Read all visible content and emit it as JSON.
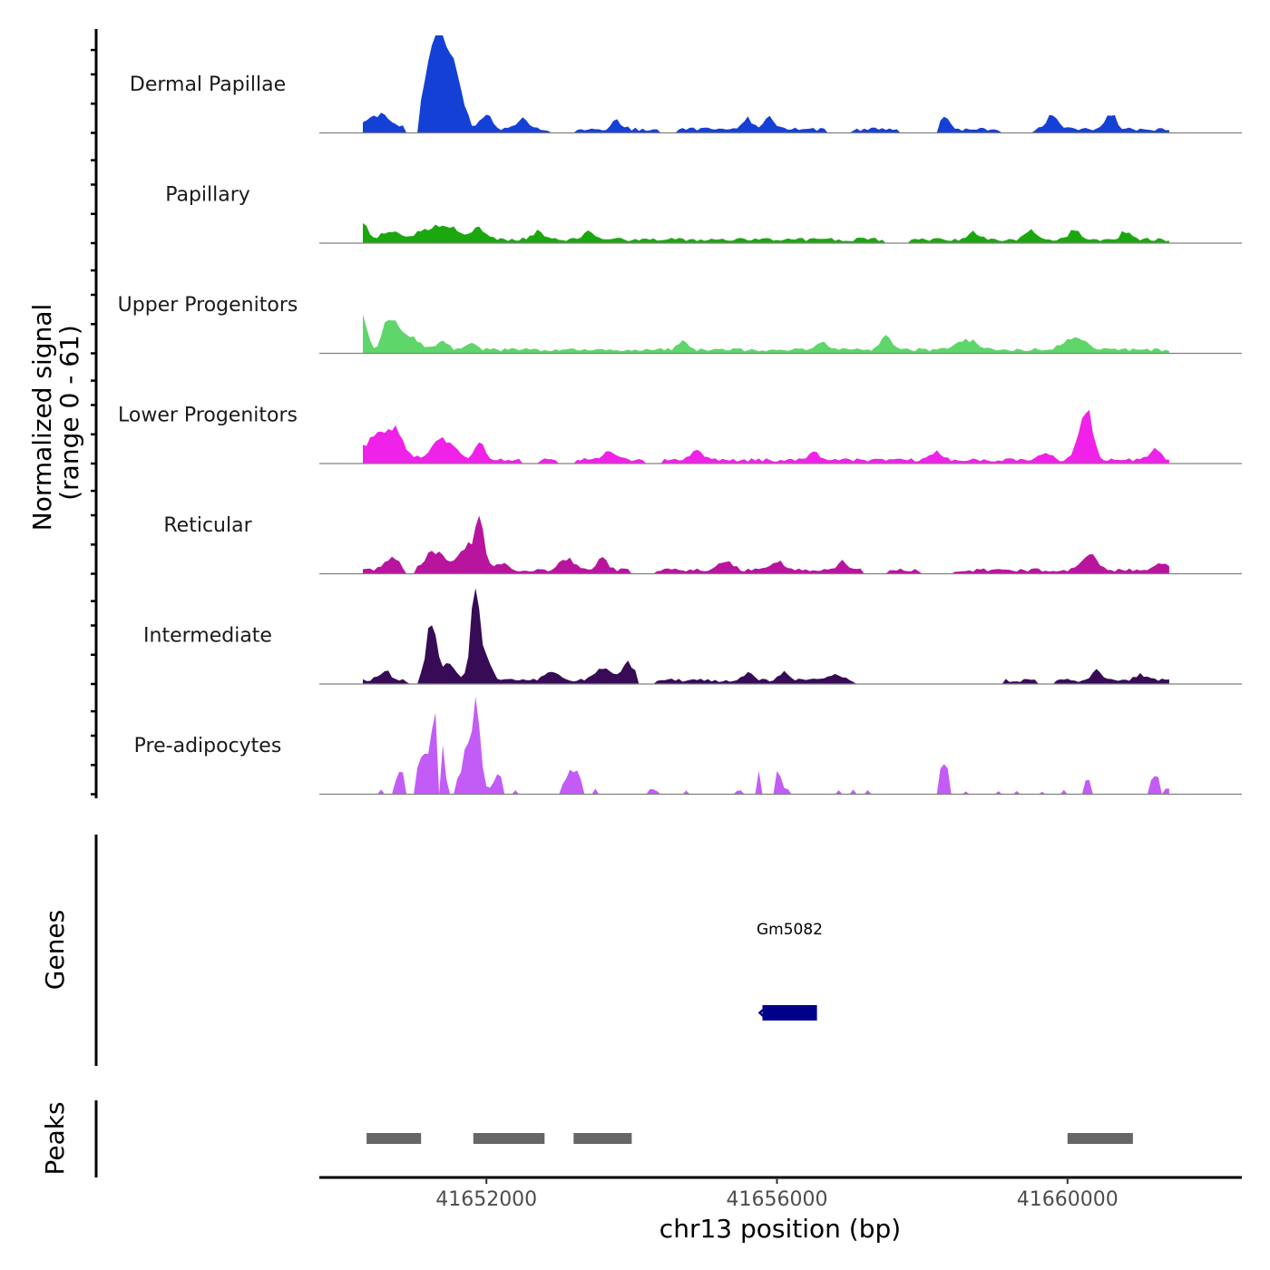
{
  "chart_data": {
    "type": "area",
    "chromosome": "chr13",
    "xlabel": "chr13 position (bp)",
    "ylabel_line1": "Normalized signal",
    "ylabel_line2": "(range 0 - 61)",
    "ylim": [
      0,
      61
    ],
    "xlim": [
      41649700,
      41662400
    ],
    "x_ticks": [
      {
        "value": 41652000,
        "label": "41652000"
      },
      {
        "value": 41656000,
        "label": "41656000"
      },
      {
        "value": 41660000,
        "label": "41660000"
      }
    ],
    "signal_start": 41650300,
    "signal_end": 41661400,
    "bin_size": 150,
    "tracks": [
      {
        "name": "Dermal Papillae",
        "color": "#1440d6",
        "peaks": [
          [
            41650500,
            10,
            300
          ],
          [
            41651400,
            55,
            300
          ],
          [
            41651250,
            22,
            400
          ],
          [
            41651650,
            15,
            150
          ],
          [
            41652000,
            10,
            150
          ],
          [
            41652500,
            8,
            150
          ],
          [
            41653800,
            6,
            150
          ],
          [
            41655600,
            7,
            150
          ],
          [
            41655900,
            9,
            150
          ],
          [
            41658300,
            8,
            150
          ],
          [
            41659800,
            12,
            150
          ],
          [
            41660600,
            10,
            150
          ]
        ],
        "gaps": [
          [
            41650900,
            41651050
          ],
          [
            41652900,
            41653200
          ],
          [
            41654400,
            41654600
          ],
          [
            41656700,
            41657000
          ],
          [
            41657700,
            41658200
          ],
          [
            41659100,
            41659500
          ]
        ]
      },
      {
        "name": "Papillary",
        "color": "#1aa80e",
        "peaks": [
          [
            41650300,
            9,
            150
          ],
          [
            41650700,
            5,
            300
          ],
          [
            41651200,
            7,
            300
          ],
          [
            41651500,
            8,
            300
          ],
          [
            41651900,
            8,
            200
          ],
          [
            41652700,
            6,
            150
          ],
          [
            41653400,
            5,
            150
          ],
          [
            41658700,
            6,
            150
          ],
          [
            41659500,
            6,
            150
          ],
          [
            41660100,
            7,
            150
          ],
          [
            41660800,
            6,
            150
          ]
        ],
        "gaps": [
          [
            41657500,
            41657800
          ]
        ]
      },
      {
        "name": "Upper Progenitors",
        "color": "#5ed66a",
        "peaks": [
          [
            41650300,
            20,
            120
          ],
          [
            41650680,
            22,
            200
          ],
          [
            41650950,
            10,
            250
          ],
          [
            41651400,
            7,
            150
          ],
          [
            41651800,
            6,
            150
          ],
          [
            41654700,
            6,
            150
          ],
          [
            41656600,
            5,
            150
          ],
          [
            41657500,
            9,
            150
          ],
          [
            41658600,
            7,
            300
          ],
          [
            41660100,
            9,
            300
          ]
        ],
        "gaps": []
      },
      {
        "name": "Lower Progenitors",
        "color": "#f021e8",
        "peaks": [
          [
            41650700,
            22,
            300
          ],
          [
            41650400,
            12,
            250
          ],
          [
            41651400,
            14,
            300
          ],
          [
            41651900,
            11,
            150
          ],
          [
            41653700,
            6,
            200
          ],
          [
            41654900,
            8,
            150
          ],
          [
            41656500,
            5,
            150
          ],
          [
            41658200,
            6,
            150
          ],
          [
            41659700,
            6,
            150
          ],
          [
            41660250,
            38,
            180
          ],
          [
            41661200,
            8,
            150
          ]
        ],
        "gaps": [
          [
            41652500,
            41652700
          ],
          [
            41653000,
            41653200
          ],
          [
            41654200,
            41654400
          ]
        ]
      },
      {
        "name": "Reticular",
        "color": "#b8149e",
        "peaks": [
          [
            41650700,
            9,
            200
          ],
          [
            41651300,
            12,
            300
          ],
          [
            41651900,
            30,
            150
          ],
          [
            41651700,
            14,
            200
          ],
          [
            41652200,
            5,
            200
          ],
          [
            41653100,
            8,
            200
          ],
          [
            41653600,
            9,
            150
          ],
          [
            41655300,
            6,
            200
          ],
          [
            41656000,
            6,
            200
          ],
          [
            41656900,
            7,
            150
          ],
          [
            41660300,
            10,
            200
          ],
          [
            41661300,
            6,
            150
          ]
        ],
        "gaps": [
          [
            41650900,
            41651000
          ],
          [
            41654000,
            41654300
          ],
          [
            41657200,
            41657500
          ],
          [
            41658000,
            41658400
          ]
        ]
      },
      {
        "name": "Intermediate",
        "color": "#370b56",
        "peaks": [
          [
            41650600,
            6,
            200
          ],
          [
            41651250,
            42,
            150
          ],
          [
            41651500,
            10,
            200
          ],
          [
            41651850,
            60,
            130
          ],
          [
            41652000,
            15,
            150
          ],
          [
            41652900,
            6,
            200
          ],
          [
            41653600,
            8,
            250
          ],
          [
            41653950,
            14,
            150
          ],
          [
            41655600,
            5,
            150
          ],
          [
            41656100,
            5,
            150
          ],
          [
            41656800,
            5,
            150
          ],
          [
            41660400,
            7,
            150
          ],
          [
            41661000,
            4,
            150
          ]
        ],
        "gaps": [
          [
            41650950,
            41651050
          ],
          [
            41654100,
            41654300
          ],
          [
            41657100,
            41659100
          ],
          [
            41659600,
            41659800
          ]
        ]
      },
      {
        "name": "Pre-adipocytes",
        "color": "#c35cf7",
        "peaks": [
          [
            41651320,
            60,
            130
          ],
          [
            41651860,
            60,
            120
          ],
          [
            41650820,
            12,
            120
          ],
          [
            41651120,
            28,
            160
          ],
          [
            41651720,
            25,
            150
          ],
          [
            41652200,
            12,
            150
          ],
          [
            41653200,
            14,
            200
          ],
          [
            41655000,
            10,
            150
          ],
          [
            41655700,
            14,
            150
          ],
          [
            41655960,
            18,
            150
          ],
          [
            41658300,
            18,
            150
          ],
          [
            41660300,
            9,
            150
          ],
          [
            41661200,
            10,
            150
          ]
        ],
        "gaps": [
          [
            41650300,
            41650500
          ],
          [
            41650600,
            41650700
          ],
          [
            41650900,
            41651000
          ],
          [
            41651350,
            41651380
          ],
          [
            41651480,
            41651550
          ],
          [
            41652250,
            41652350
          ],
          [
            41652450,
            41653000
          ],
          [
            41653350,
            41653450
          ],
          [
            41653550,
            41654200
          ],
          [
            41654400,
            41654700
          ],
          [
            41654800,
            41655400
          ],
          [
            41655550,
            41655700
          ],
          [
            41655800,
            41655950
          ],
          [
            41656200,
            41656800
          ],
          [
            41656900,
            41657000
          ],
          [
            41657100,
            41657200
          ],
          [
            41657300,
            41658200
          ],
          [
            41658400,
            41658550
          ],
          [
            41658650,
            41659000
          ],
          [
            41659100,
            41659250
          ],
          [
            41659350,
            41659600
          ],
          [
            41659700,
            41659900
          ],
          [
            41660000,
            41660200
          ],
          [
            41660350,
            41661100
          ],
          [
            41661280,
            41661300
          ]
        ]
      }
    ],
    "genes_panel": {
      "title": "Genes",
      "genes": [
        {
          "name": "Gm5082",
          "start": 41655800,
          "end": 41656550,
          "strand": "-",
          "color": "#00008b"
        }
      ]
    },
    "peaks_panel": {
      "title": "Peaks",
      "color": "#666666",
      "regions": [
        [
          41650350,
          41651100
        ],
        [
          41651820,
          41652800
        ],
        [
          41653200,
          41654000
        ],
        [
          41660000,
          41660900
        ]
      ]
    }
  }
}
